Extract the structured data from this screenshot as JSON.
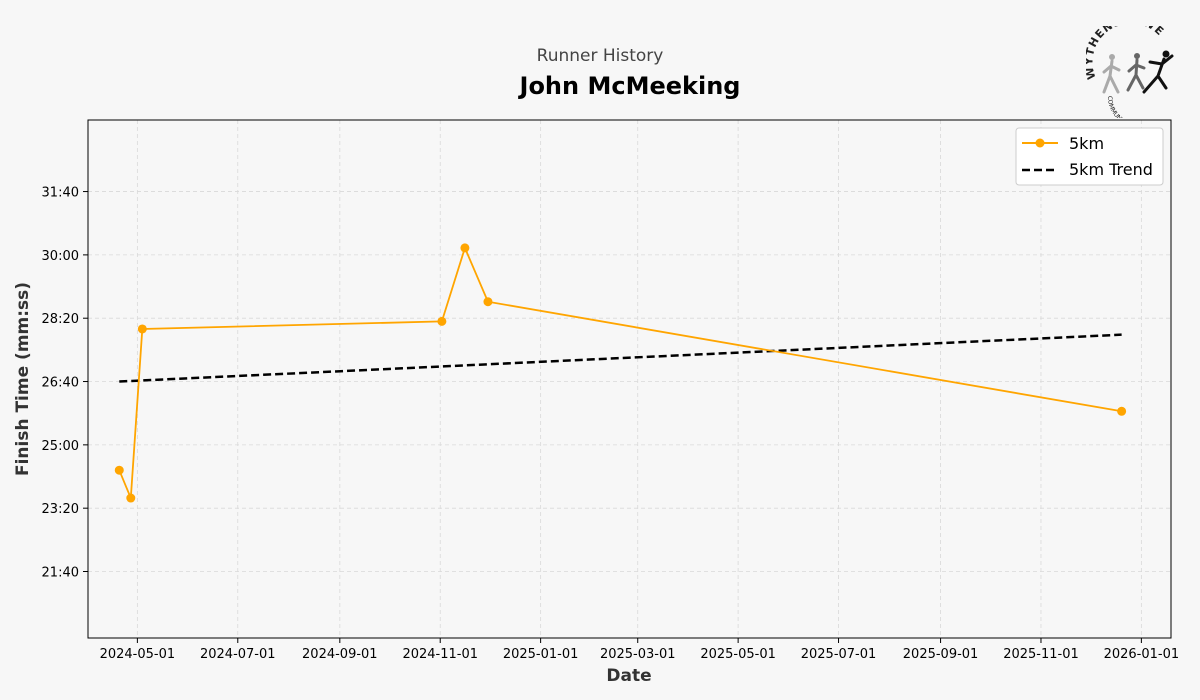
{
  "header": {
    "subtitle": "Runner History",
    "title": "John McMeeking"
  },
  "logo": {
    "text_top": "WYTHENSHAWE",
    "text_bottom": "COMMUNITY RUN",
    "icon": "runners-logo-icon"
  },
  "chart_data": {
    "type": "line",
    "xlabel": "Date",
    "ylabel": "Finish Time (mm:ss)",
    "x_ticks": [
      "2024-05-01",
      "2024-07-01",
      "2024-09-01",
      "2024-11-01",
      "2025-01-01",
      "2025-03-01",
      "2025-05-01",
      "2025-07-01",
      "2025-09-01",
      "2025-11-01",
      "2026-01-01"
    ],
    "y_ticks": [
      "21:40",
      "23:20",
      "25:00",
      "26:40",
      "28:20",
      "30:00",
      "31:40"
    ],
    "xlim": [
      "2024-04-01",
      "2026-01-19"
    ],
    "ylim_seconds": [
      1195,
      2013
    ],
    "grid": true,
    "legend_position": "top-right",
    "colors": {
      "series": "#ffa500",
      "trend": "#000000",
      "grid": "#d9d9d9"
    },
    "series": [
      {
        "name": "5km",
        "x": [
          "2024-04-20",
          "2024-04-27",
          "2024-05-04",
          "2024-11-02",
          "2024-11-16",
          "2024-11-30",
          "2025-12-20"
        ],
        "y_seconds": [
          1460,
          1416,
          1683,
          1695,
          1811,
          1726,
          1553
        ],
        "y": [
          "24:20",
          "23:36",
          "28:03",
          "28:15",
          "30:11",
          "28:46",
          "25:53"
        ]
      },
      {
        "name": "5km Trend",
        "x": [
          "2024-04-20",
          "2025-12-20"
        ],
        "y_seconds": [
          1600,
          1674
        ],
        "y": [
          "26:40",
          "27:54"
        ]
      }
    ]
  }
}
